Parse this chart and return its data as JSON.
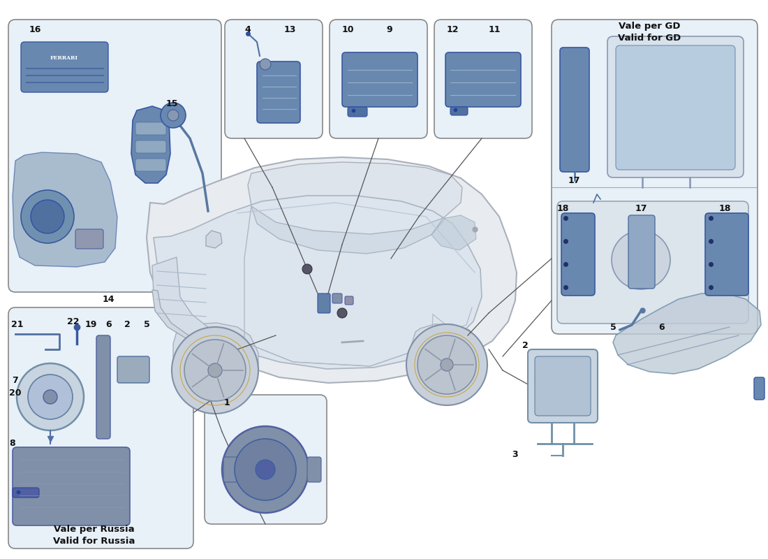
{
  "bg": "#ffffff",
  "box_fc": "#e8eff5",
  "box_ec": "#888888",
  "part_fc": "#7090b8",
  "part_ec": "#4060a0",
  "line_c": "#555555",
  "label_c": "#111111",
  "vale_GD_line1": "Vale per GD",
  "vale_GD_line2": "Valid for GD",
  "vale_Russia_line1": "Vale per Russia",
  "vale_Russia_line2": "Valid for Russia"
}
